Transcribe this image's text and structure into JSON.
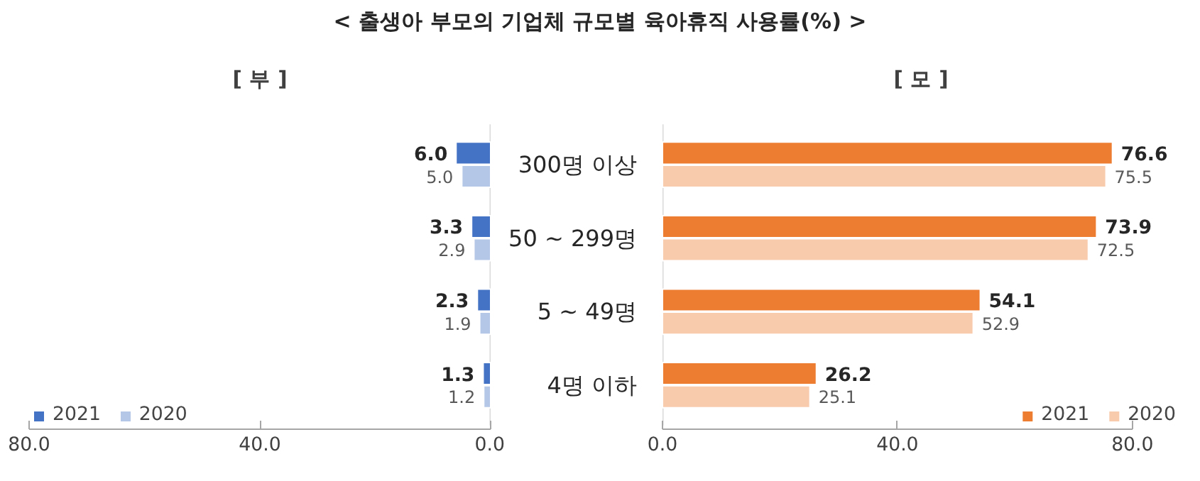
{
  "chart_data": [
    {
      "type": "bar",
      "orientation": "horizontal",
      "title": "< 출생아 부모의 기업체 규모별 육아휴직 사용률(%) >",
      "subtitle": "[ 부 ]",
      "categories": [
        null,
        null,
        null,
        null
      ],
      "series": [
        {
          "name": "2021",
          "color": "#4472c4",
          "values": [
            6.0,
            3.3,
            2.3,
            1.3
          ],
          "value_labels": [
            "6.0",
            "3.3",
            "2.3",
            "1.3"
          ]
        },
        {
          "name": "2020",
          "color": "#b4c7e7",
          "values": [
            5.0,
            2.9,
            1.9,
            1.2
          ],
          "value_labels": [
            "5.0",
            "2.9",
            "1.9",
            "1.2"
          ]
        }
      ],
      "xlim": [
        80,
        0
      ],
      "xticks": [
        {
          "value": 80,
          "label": "80.0"
        },
        {
          "value": 40,
          "label": "40.0"
        },
        {
          "value": 0,
          "label": "0.0"
        }
      ],
      "grid": false,
      "legend": "bottom left",
      "tick_labels": "x"
    },
    {
      "type": "bar",
      "orientation": "horizontal",
      "subtitle": "[ 모 ]",
      "categories": [
        "300명 이상",
        "50 ~ 299명",
        "5 ~ 49명",
        "4명 이하"
      ],
      "series": [
        {
          "name": "2021",
          "color": "#ed7d31",
          "values": [
            76.6,
            73.9,
            54.1,
            26.2
          ],
          "value_labels": [
            "76.6",
            "73.9",
            "54.1",
            "26.2"
          ]
        },
        {
          "name": "2020",
          "color": "#f8cbad",
          "values": [
            75.5,
            72.5,
            52.9,
            25.1
          ],
          "value_labels": [
            "75.5",
            "72.5",
            "52.9",
            "25.1"
          ]
        }
      ],
      "xlim": [
        0,
        80
      ],
      "xticks": [
        {
          "value": 0,
          "label": "0.0"
        },
        {
          "value": 40,
          "label": "40.0"
        },
        {
          "value": 80,
          "label": "80.0"
        }
      ],
      "grid": false,
      "legend": "bottom right"
    }
  ]
}
